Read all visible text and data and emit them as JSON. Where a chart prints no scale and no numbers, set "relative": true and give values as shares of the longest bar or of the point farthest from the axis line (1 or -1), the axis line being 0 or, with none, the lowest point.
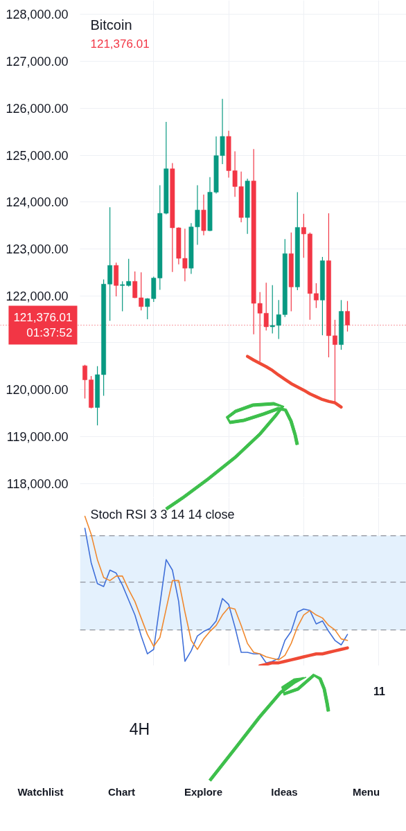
{
  "chart_data": [
    {
      "type": "candlestick",
      "title": "Bitcoin",
      "subtitle": "121,376.01",
      "categories": [
        null,
        null,
        null,
        null,
        null,
        null,
        null,
        null,
        null,
        null,
        null,
        null,
        null,
        null,
        null,
        null,
        null,
        null,
        null,
        null,
        null,
        null,
        null,
        null,
        null,
        null,
        null,
        null,
        null,
        null,
        null,
        null,
        null,
        null,
        null,
        null,
        null,
        null,
        null,
        null,
        null,
        null,
        null
      ],
      "ohlc": [
        [
          120510,
          120530,
          119810,
          120210
        ],
        [
          120210,
          120290,
          119600,
          119620
        ],
        [
          119620,
          120500,
          119240,
          120320
        ],
        [
          120320,
          122350,
          119870,
          122250
        ],
        [
          122250,
          123890,
          121470,
          122650
        ],
        [
          122650,
          122710,
          121990,
          122220
        ],
        [
          122220,
          122310,
          121670,
          122240
        ],
        [
          122220,
          122790,
          122200,
          122310
        ],
        [
          122310,
          122520,
          121950,
          121960
        ],
        [
          121960,
          122500,
          121690,
          121770
        ],
        [
          121770,
          121950,
          121500,
          121940
        ],
        [
          121940,
          122410,
          121870,
          122380
        ],
        [
          122380,
          124360,
          122130,
          123760
        ],
        [
          123760,
          125710,
          123740,
          124710
        ],
        [
          124710,
          124830,
          122510,
          123450
        ],
        [
          123450,
          123460,
          122670,
          122800
        ],
        [
          122800,
          123430,
          122310,
          122590
        ],
        [
          122590,
          123550,
          122470,
          123470
        ],
        [
          123470,
          124360,
          123090,
          123830
        ],
        [
          123830,
          124160,
          123290,
          123390
        ],
        [
          123390,
          124530,
          123380,
          124210
        ],
        [
          124210,
          125400,
          124180,
          124990
        ],
        [
          124990,
          126200,
          124810,
          125400
        ],
        [
          125400,
          125520,
          124520,
          124670
        ],
        [
          124670,
          125080,
          124110,
          124330
        ],
        [
          124330,
          124650,
          123570,
          123670
        ],
        [
          123670,
          124500,
          123320,
          124450
        ],
        [
          124450,
          125130,
          121180,
          121840
        ],
        [
          121840,
          122080,
          120600,
          121630
        ],
        [
          121630,
          122280,
          121260,
          121340
        ],
        [
          121340,
          122230,
          121200,
          121370
        ],
        [
          121370,
          121910,
          121080,
          121600
        ],
        [
          121600,
          123210,
          121550,
          122900
        ],
        [
          122900,
          123350,
          121670,
          122190
        ],
        [
          122190,
          124210,
          122120,
          123460
        ],
        [
          123460,
          123750,
          122810,
          123320
        ],
        [
          123320,
          123350,
          121490,
          122050
        ],
        [
          122050,
          122270,
          121740,
          121910
        ],
        [
          121910,
          122830,
          121160,
          122750
        ],
        [
          122750,
          123760,
          120690,
          121150
        ],
        [
          121150,
          121490,
          119730,
          120960
        ],
        [
          120960,
          121910,
          120850,
          121670
        ],
        [
          121670,
          121890,
          121240,
          121376.01
        ]
      ],
      "colors": [
        "#f23645",
        "#f23645",
        "#089981",
        "#089981",
        "#089981",
        "#f23645",
        "#089981",
        "#089981",
        "#f23645",
        "#f23645",
        "#089981",
        "#089981",
        "#089981",
        "#089981",
        "#f23645",
        "#f23645",
        "#f23645",
        "#089981",
        "#089981",
        "#f23645",
        "#089981",
        "#089981",
        "#089981",
        "#f23645",
        "#f23645",
        "#f23645",
        "#089981",
        "#f23645",
        "#f23645",
        "#f23645",
        "#089981",
        "#089981",
        "#089981",
        "#f23645",
        "#089981",
        "#f23645",
        "#f23645",
        "#f23645",
        "#089981",
        "#f23645",
        "#f23645",
        "#089981",
        "#f23645"
      ],
      "series": [
        {
          "type": "line",
          "color": "#ef4a36",
          "values": [
            null,
            null,
            null,
            null,
            null,
            null,
            null,
            null,
            null,
            null,
            null,
            null,
            null,
            null,
            null,
            null,
            null,
            null,
            null,
            null,
            null,
            null,
            null,
            null,
            null,
            null,
            120710,
            120630,
            120560,
            120490,
            120410,
            120310,
            120220,
            120130,
            120060,
            119990,
            119910,
            119850,
            119790,
            119750,
            119720,
            119630,
            null
          ]
        }
      ],
      "ylim": [
        117700,
        128300
      ],
      "yticks": [
        {
          "value": 118000,
          "label": "118,000.00"
        },
        {
          "value": 119000,
          "label": "119,000.00"
        },
        {
          "value": 120000,
          "label": "120,000.00"
        },
        {
          "value": 121000,
          "label": null
        },
        {
          "value": 122000,
          "label": "122,000.00"
        },
        {
          "value": 123000,
          "label": "123,000.00"
        },
        {
          "value": 124000,
          "label": "124,000.00"
        },
        {
          "value": 125000,
          "label": "125,000.00"
        },
        {
          "value": 126000,
          "label": "126,000.00"
        },
        {
          "value": 127000,
          "label": "127,000.00"
        },
        {
          "value": 128000,
          "label": "128,000.00"
        }
      ],
      "ref_lines": [
        {
          "axis": "y",
          "value": 121376.01,
          "label": "121,376.01\n01:37:52",
          "color": "#f23645",
          "line_style": "dotted"
        }
      ],
      "grid": true,
      "tick_labels": "y"
    },
    {
      "type": "line",
      "title": "Stoch RSI 3 3 14 14 close",
      "relative": true,
      "categories": [
        null,
        null,
        null,
        null,
        null,
        null,
        null,
        null,
        null,
        null,
        null,
        null,
        null,
        null,
        null,
        null,
        null,
        null,
        null,
        null,
        null,
        null,
        null,
        null,
        null,
        null,
        null,
        null,
        null,
        null,
        null,
        null,
        null,
        null,
        null,
        null,
        null,
        null,
        null,
        null,
        null,
        null,
        null
      ],
      "series": [
        {
          "color": "#3f6fd9",
          "values": [
            0.92,
            0.69,
            0.55,
            0.53,
            0.64,
            0.62,
            0.54,
            0.44,
            0.34,
            0.2,
            0.08,
            0.11,
            0.41,
            0.71,
            0.64,
            0.43,
            0.03,
            0.1,
            0.2,
            0.23,
            0.25,
            0.3,
            0.45,
            0.41,
            0.26,
            0.09,
            0.09,
            0.08,
            0.08,
            0.02,
            0.03,
            0.05,
            0.17,
            0.23,
            0.36,
            0.38,
            0.37,
            0.28,
            0.3,
            0.23,
            0.17,
            0.14,
            0.21
          ]
        },
        {
          "color": "#f0882e",
          "values": [
            1,
            0.88,
            0.71,
            0.59,
            0.57,
            0.6,
            0.6,
            0.51,
            0.43,
            0.32,
            0.21,
            0.13,
            0.19,
            0.38,
            0.57,
            0.57,
            0.36,
            0.17,
            0.11,
            0.18,
            0.23,
            0.27,
            0.34,
            0.39,
            0.38,
            0.27,
            0.15,
            0.09,
            0.08,
            0.06,
            0.05,
            0.04,
            0.07,
            0.15,
            0.26,
            0.34,
            0.37,
            0.34,
            0.32,
            0.27,
            0.24,
            0.18,
            0.17
          ]
        },
        {
          "color": "#ef4a36",
          "values": [
            null,
            null,
            null,
            null,
            null,
            null,
            null,
            null,
            null,
            null,
            null,
            null,
            null,
            null,
            null,
            null,
            null,
            null,
            null,
            null,
            null,
            null,
            null,
            null,
            null,
            null,
            null,
            null,
            0,
            0.01,
            0.02,
            0.02,
            0.03,
            0.04,
            0.05,
            0.06,
            0.07,
            0.08,
            0.08,
            0.09,
            0.1,
            0.11,
            0.12
          ]
        }
      ],
      "bands": [
        {
          "axis": "y",
          "from": 0.24,
          "to": 0.87,
          "color": "#e4f1fd"
        }
      ],
      "ref_lines": [
        {
          "axis": "y",
          "value": 0.87,
          "color": "#8f939c",
          "line_style": "dashed"
        },
        {
          "axis": "y",
          "value": 0.56,
          "color": "#8f939c",
          "line_style": "dashed"
        },
        {
          "axis": "y",
          "value": 0.24,
          "color": "#8f939c",
          "line_style": "dashed"
        }
      ],
      "grid": "x",
      "tick_labels": false
    },
    {
      "type": "other",
      "annotations": [
        "11",
        "4H",
        "Watchlist",
        "Chart",
        "Explore",
        "Ideas",
        "Menu"
      ]
    }
  ]
}
